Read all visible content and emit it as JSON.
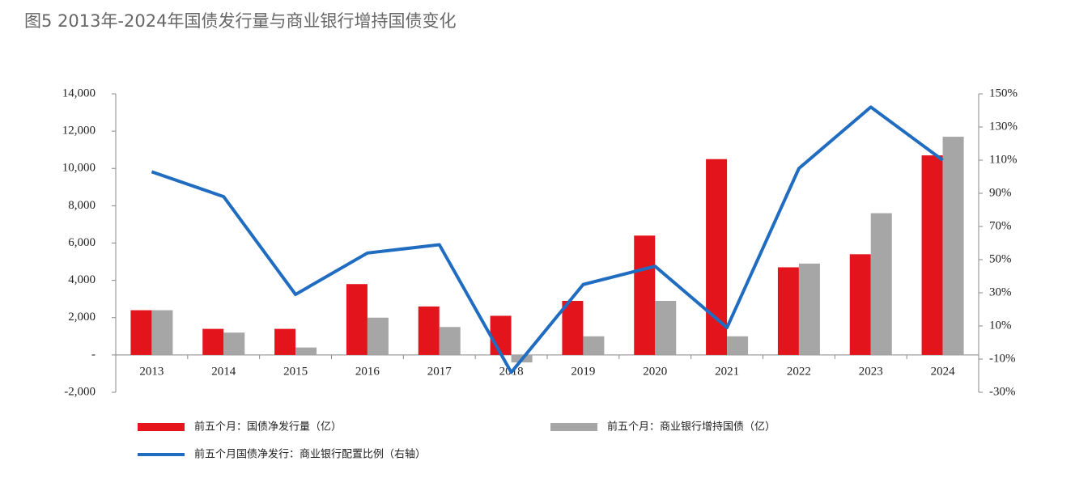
{
  "chart_data": {
    "type": "bar",
    "title": "图5 2013年-2024年国债发行量与商业银行增持国债变化",
    "categories": [
      "2013",
      "2014",
      "2015",
      "2016",
      "2017",
      "2018",
      "2019",
      "2020",
      "2021",
      "2022",
      "2023",
      "2024"
    ],
    "series": [
      {
        "name": "前五个月：国债净发行量（亿）",
        "type": "bar",
        "color": "#e3141b",
        "values": [
          2400,
          1400,
          1400,
          3800,
          2600,
          2100,
          2900,
          6400,
          10500,
          4700,
          5400,
          10700
        ]
      },
      {
        "name": "前五个月：商业银行增持国债（亿）",
        "type": "bar",
        "color": "#a6a6a6",
        "values": [
          2400,
          1200,
          400,
          2000,
          1500,
          -400,
          1000,
          2900,
          1000,
          4900,
          7600,
          11700
        ]
      },
      {
        "name": "前五个月国债净发行：商业银行配置比例（右轴）",
        "type": "line",
        "axis": "y2",
        "color": "#1f6cc1",
        "values": [
          103,
          88,
          29,
          54,
          59,
          -18,
          35,
          46,
          9,
          105,
          142,
          110
        ]
      }
    ],
    "ylim": [
      -2000,
      14000
    ],
    "yticks": [
      {
        "value": -2000,
        "label": "-2,000"
      },
      {
        "value": 0,
        "label": "-"
      },
      {
        "value": 2000,
        "label": "2,000"
      },
      {
        "value": 4000,
        "label": "4,000"
      },
      {
        "value": 6000,
        "label": "6,000"
      },
      {
        "value": 8000,
        "label": "8,000"
      },
      {
        "value": 10000,
        "label": "10,000"
      },
      {
        "value": 12000,
        "label": "12,000"
      },
      {
        "value": 14000,
        "label": "14,000"
      }
    ],
    "y2lim": [
      -30,
      150
    ],
    "y2ticks": [
      {
        "value": -30,
        "label": "-30%"
      },
      {
        "value": -10,
        "label": "-10%"
      },
      {
        "value": 10,
        "label": "10%"
      },
      {
        "value": 30,
        "label": "30%"
      },
      {
        "value": 50,
        "label": "50%"
      },
      {
        "value": 70,
        "label": "70%"
      },
      {
        "value": 90,
        "label": "90%"
      },
      {
        "value": 110,
        "label": "110%"
      },
      {
        "value": 130,
        "label": "130%"
      },
      {
        "value": 150,
        "label": "150%"
      }
    ],
    "grid": false
  }
}
